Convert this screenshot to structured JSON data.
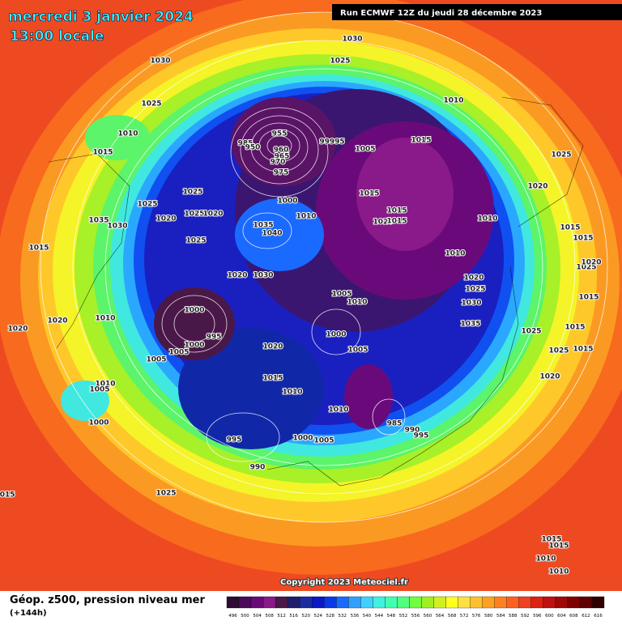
{
  "header": {
    "date": "mercredi 3 janvier 2024",
    "time": "13:00 locale",
    "run": "Run ECMWF 12Z du jeudi 28 décembre 2023"
  },
  "isobar_labels": [
    1030,
    1025,
    1030,
    1025,
    1010,
    1015,
    955,
    985,
    950,
    960,
    965,
    970,
    975,
    99995,
    1005,
    1015,
    1010,
    1025,
    1020,
    1025,
    1025,
    1020,
    1025,
    1020,
    1035,
    1030,
    1000,
    1010,
    1015,
    1015,
    1020,
    1015,
    1010,
    1015,
    1015,
    1035,
    1040,
    1025,
    1015,
    1010,
    1025,
    1020,
    1030,
    1020,
    1025,
    1005,
    1010,
    1030,
    1015,
    1000,
    1010,
    1020,
    1020,
    1035,
    995,
    1000,
    1000,
    1005,
    1025,
    1015,
    1020,
    1005,
    1025,
    1015,
    1005,
    1015,
    1020,
    1010,
    1005,
    1010,
    1010,
    1000,
    985,
    990,
    995,
    995,
    1000,
    1005,
    990,
    1025,
    1015,
    1015,
    1015,
    1010,
    1010,
    1020
  ],
  "copyright": "Copyright 2023 Meteociel.fr",
  "legend": {
    "title": "Géop. z500, pression niveau mer",
    "subtitle": "(+144h)",
    "labels": [
      496,
      500,
      504,
      508,
      512,
      516,
      520,
      524,
      528,
      532,
      536,
      540,
      544,
      548,
      552,
      556,
      560,
      564,
      568,
      572,
      576,
      580,
      584,
      588,
      592,
      596,
      600,
      604,
      608,
      612,
      616
    ],
    "colors": [
      "#2d0b33",
      "#4b0a5a",
      "#6a0a7a",
      "#8a1a8a",
      "#4a1848",
      "#1f1e6e",
      "#1c2ca0",
      "#0a18c8",
      "#0a3ae8",
      "#1a6aff",
      "#30a0ff",
      "#40d0ff",
      "#40f0e0",
      "#40ffb0",
      "#50ff80",
      "#70ff40",
      "#a0f020",
      "#d0f020",
      "#ffff20",
      "#ffe040",
      "#ffc030",
      "#ffa020",
      "#ff8020",
      "#ff6020",
      "#f04020",
      "#e02010",
      "#c01010",
      "#a00808",
      "#800000",
      "#600000",
      "#300000"
    ]
  }
}
